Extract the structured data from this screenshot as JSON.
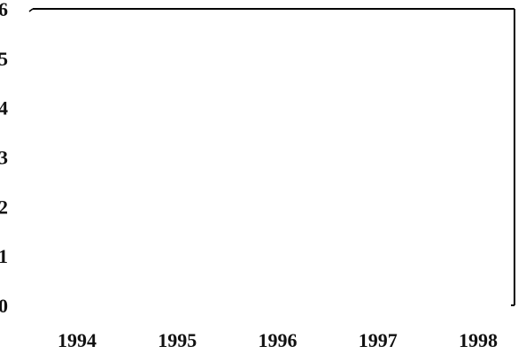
{
  "chart_data": {
    "type": "line",
    "title": "",
    "xlabel": "",
    "ylabel": "",
    "categories": [
      "1994",
      "1995",
      "1996",
      "1997",
      "1998"
    ],
    "y_ticks": [
      "0",
      "1",
      "2",
      "3",
      "4",
      "5",
      "6"
    ],
    "ylim": [
      0,
      6
    ],
    "series": [],
    "grid": false,
    "legend": "none"
  },
  "colors": {
    "axis": "#000000",
    "text": "#111111",
    "background": "#ffffff"
  }
}
